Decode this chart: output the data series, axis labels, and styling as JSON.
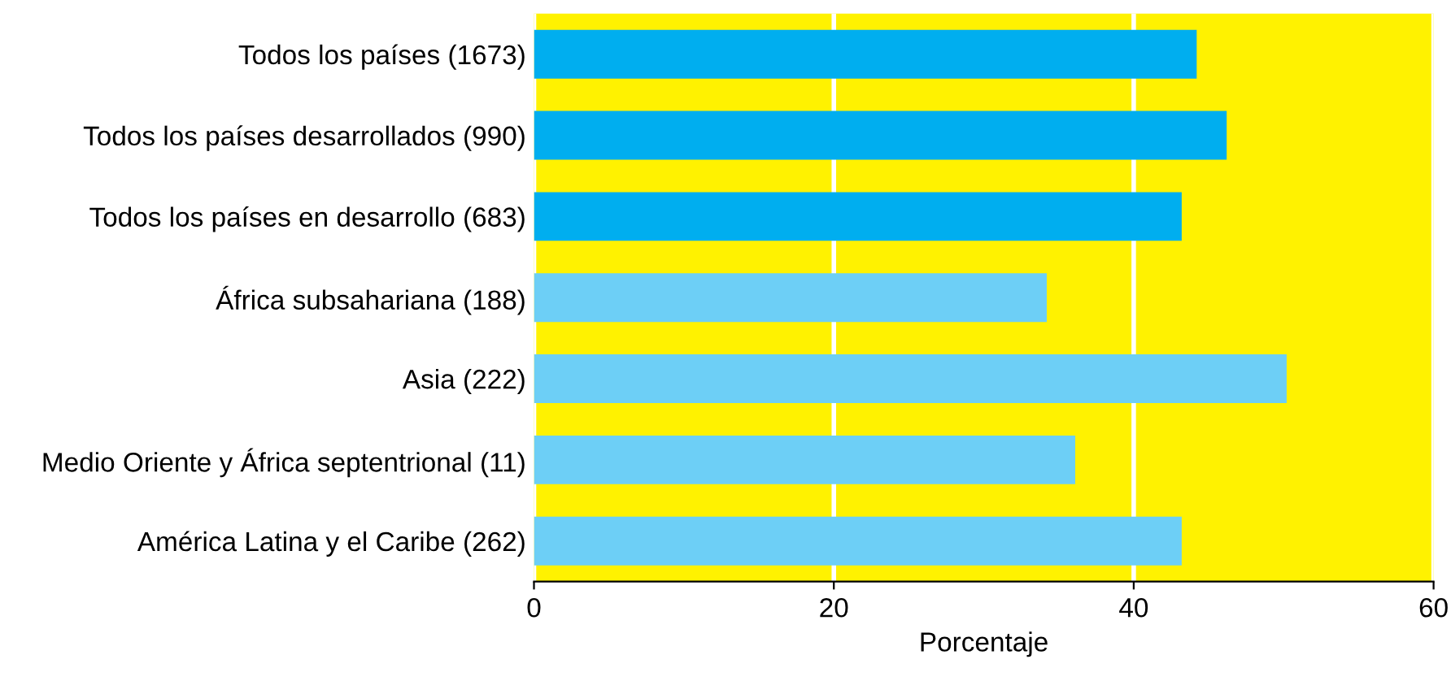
{
  "chart_data": {
    "type": "bar",
    "orientation": "horizontal",
    "xlabel": "Porcentaje",
    "categories": [
      "Todos los países (1673)",
      "Todos los países desarrollados (990)",
      "Todos los países en desarrollo (683)",
      "África subsahariana (188)",
      "Asia (222)",
      "Medio Oriente y África septentrional (11)",
      "América Latina y el Caribe (262)"
    ],
    "values": [
      44.2,
      46.2,
      43.2,
      34.2,
      50.2,
      36.1,
      43.2
    ],
    "colors": [
      "#00aeef",
      "#00aeef",
      "#00aeef",
      "#6dcff6",
      "#6dcff6",
      "#6dcff6",
      "#6dcff6"
    ],
    "xlim": [
      0,
      60
    ],
    "xticks": [
      0,
      20,
      40,
      60
    ],
    "grid": "x"
  }
}
